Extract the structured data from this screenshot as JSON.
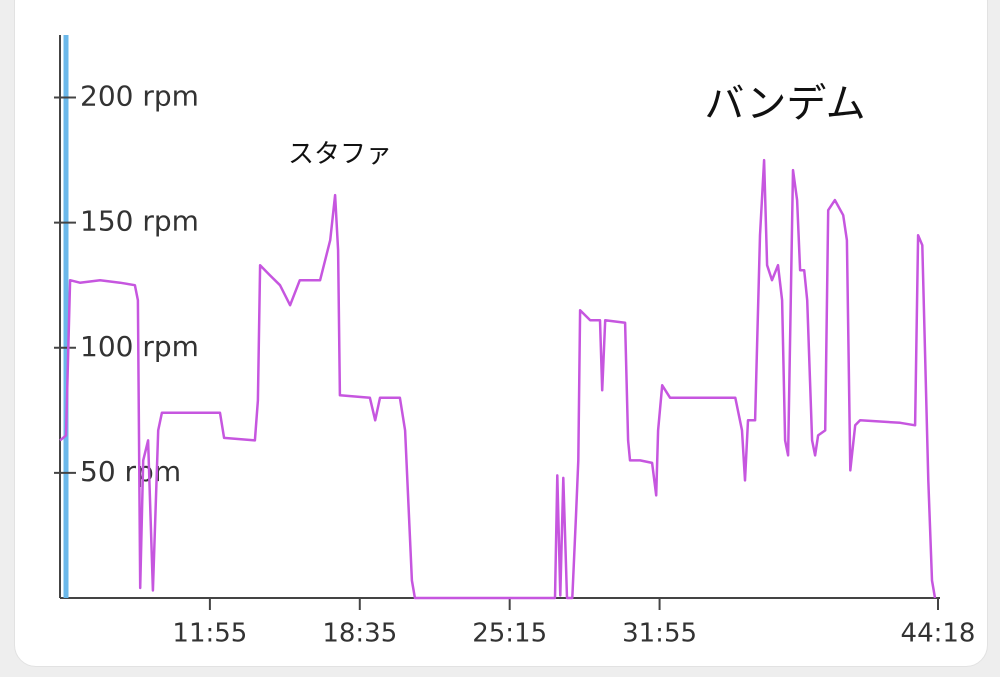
{
  "chart_data": {
    "type": "line",
    "color": "#c656df",
    "annotations": [
      "スタファ",
      "バンデム"
    ],
    "xlim": [
      315,
      2658
    ],
    "ylim": [
      0,
      225
    ],
    "xticks": [
      {
        "value": 715,
        "label": "11:55"
      },
      {
        "value": 1115,
        "label": "18:35"
      },
      {
        "value": 1515,
        "label": "25:15"
      },
      {
        "value": 1915,
        "label": "31:55"
      },
      {
        "value": 2658,
        "label": "44:18"
      }
    ],
    "yticks": [
      {
        "value": 50,
        "label": "50 rpm"
      },
      {
        "value": 100,
        "label": "100 rpm"
      },
      {
        "value": 150,
        "label": "150 rpm"
      },
      {
        "value": 200,
        "label": "200 rpm"
      }
    ],
    "x": [
      315,
      331,
      342,
      368,
      422,
      475,
      515,
      523,
      529,
      537,
      550,
      563,
      577,
      587,
      662,
      742,
      753,
      835,
      843,
      849,
      875,
      902,
      929,
      955,
      1009,
      1036,
      1049,
      1057,
      1062,
      1142,
      1156,
      1169,
      1222,
      1236,
      1254,
      1262,
      1369,
      1636,
      1642,
      1650,
      1658,
      1668,
      1682,
      1692,
      1698,
      1703,
      1730,
      1756,
      1762,
      1770,
      1823,
      1831,
      1836,
      1863,
      1895,
      1906,
      1911,
      1922,
      1943,
      2023,
      2117,
      2135,
      2143,
      2151,
      2170,
      2183,
      2194,
      2202,
      2215,
      2231,
      2242,
      2250,
      2258,
      2271,
      2282,
      2290,
      2301,
      2309,
      2322,
      2330,
      2338,
      2357,
      2365,
      2383,
      2405,
      2415,
      2424,
      2437,
      2450,
      2557,
      2597,
      2605,
      2616,
      2632,
      2642,
      2650
    ],
    "values": [
      63,
      65,
      127,
      126,
      127,
      126,
      125,
      119,
      4,
      55,
      63,
      3,
      67,
      74,
      74,
      74,
      64,
      63,
      79,
      133,
      129,
      125,
      117,
      127,
      127,
      143,
      161,
      139,
      81,
      80,
      71,
      80,
      80,
      67,
      7,
      0,
      0,
      0,
      49,
      1,
      48,
      0,
      0,
      33,
      55,
      115,
      111,
      111,
      83,
      111,
      110,
      63,
      55,
      55,
      54,
      41,
      67,
      85,
      80,
      80,
      80,
      67,
      47,
      71,
      71,
      145,
      175,
      133,
      127,
      133,
      119,
      63,
      57,
      171,
      159,
      131,
      131,
      119,
      63,
      57,
      65,
      67,
      155,
      159,
      153,
      143,
      51,
      69,
      71,
      70,
      69,
      145,
      141,
      47,
      7,
      0
    ]
  }
}
